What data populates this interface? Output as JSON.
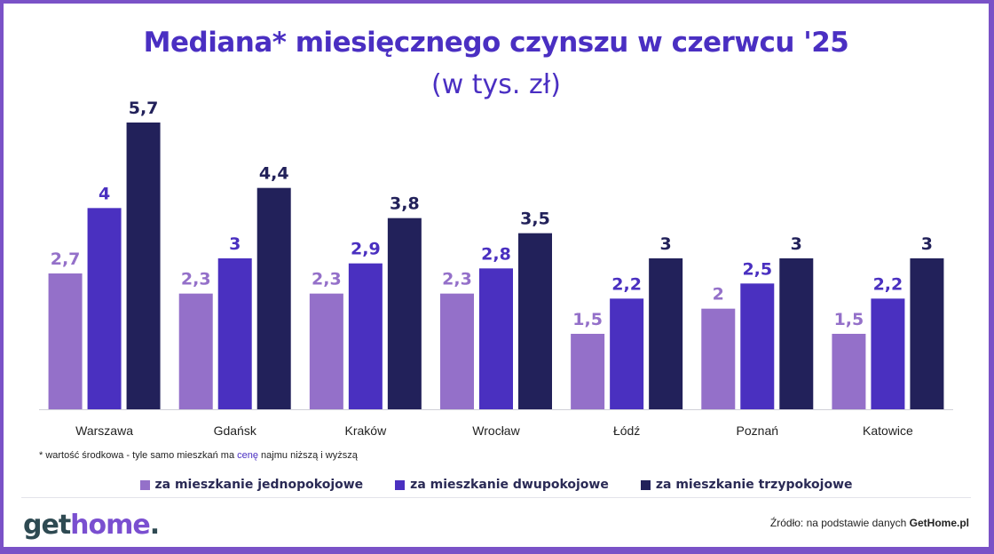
{
  "title": "Mediana* miesięcznego czynszu w czerwcu '25",
  "subtitle": "(w tys. zł)",
  "footnote": {
    "prefix": "* wartość środkowa  - tyle samo mieszkań ma ",
    "highlight": "cenę",
    "suffix": " najmu niższą i wyższą"
  },
  "source": {
    "prefix": "Źródło: na podstawie danych ",
    "brand": "GetHome.pl"
  },
  "logo": {
    "part1": "get",
    "part2": "home",
    "part3": "."
  },
  "colors": {
    "one_room": "#9470c9",
    "two_room": "#4a30c0",
    "three_room": "#22215a",
    "title": "#4a2fc2",
    "frame": "#7a52c7"
  },
  "chart_data": {
    "type": "bar",
    "categories": [
      "Warszawa",
      "Gdańsk",
      "Kraków",
      "Wrocław",
      "Łódź",
      "Poznań",
      "Katowice"
    ],
    "series": [
      {
        "name": "za mieszkanie jednopokojowe",
        "color": "#9470c9",
        "values": [
          2.7,
          2.3,
          2.3,
          2.3,
          1.5,
          2.0,
          1.5
        ],
        "labels": [
          "2,7",
          "2,3",
          "2,3",
          "2,3",
          "1,5",
          "2",
          "1,5"
        ]
      },
      {
        "name": "za mieszkanie dwupokojowe",
        "color": "#4a30c0",
        "values": [
          4.0,
          3.0,
          2.9,
          2.8,
          2.2,
          2.5,
          2.2
        ],
        "labels": [
          "4",
          "3",
          "2,9",
          "2,8",
          "2,2",
          "2,5",
          "2,2"
        ]
      },
      {
        "name": "za mieszkanie trzypokojowe",
        "color": "#22215a",
        "values": [
          5.7,
          4.4,
          3.8,
          3.5,
          3.0,
          3.0,
          3.0
        ],
        "labels": [
          "5,7",
          "4,4",
          "3,8",
          "3,5",
          "3",
          "3",
          "3"
        ]
      }
    ],
    "ylim": [
      0,
      5.7
    ],
    "grid": false,
    "legend_position": "bottom"
  }
}
